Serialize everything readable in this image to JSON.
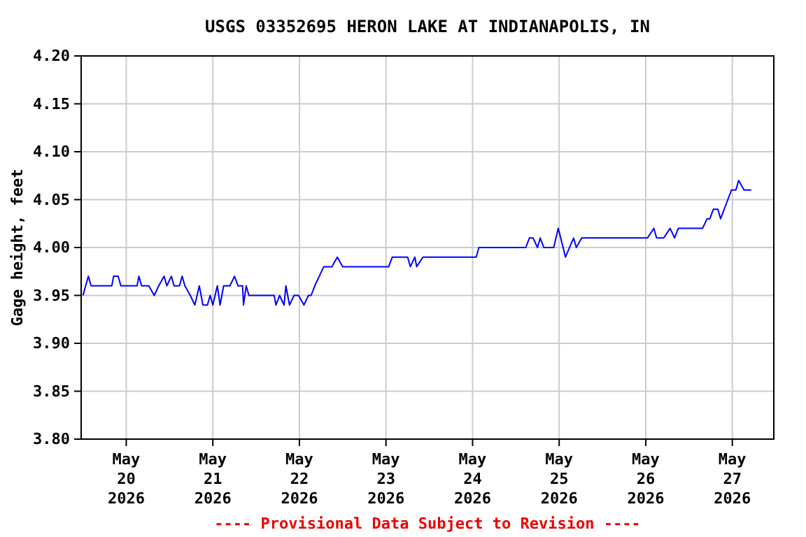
{
  "chart_data": {
    "type": "line",
    "title": "USGS 03352695 HERON LAKE AT INDIANAPOLIS, IN",
    "ylabel": "Gage height, feet",
    "x": [
      "2026-05-19T12:00",
      "2026-05-19T13:30",
      "2026-05-19T14:15",
      "2026-05-19T20:00",
      "2026-05-19T20:30",
      "2026-05-19T21:45",
      "2026-05-19T22:30",
      "2026-05-20T03:00",
      "2026-05-20T03:30",
      "2026-05-20T04:15",
      "2026-05-20T06:15",
      "2026-05-20T07:45",
      "2026-05-20T09:00",
      "2026-05-20T10:30",
      "2026-05-20T11:15",
      "2026-05-20T12:30",
      "2026-05-20T13:15",
      "2026-05-20T14:45",
      "2026-05-20T15:30",
      "2026-05-20T16:15",
      "2026-05-20T17:45",
      "2026-05-20T19:00",
      "2026-05-20T20:15",
      "2026-05-20T21:15",
      "2026-05-20T22:30",
      "2026-05-20T23:15",
      "2026-05-21T00:00",
      "2026-05-21T01:15",
      "2026-05-21T02:00",
      "2026-05-21T03:00",
      "2026-05-21T04:45",
      "2026-05-21T06:00",
      "2026-05-21T07:00",
      "2026-05-21T08:15",
      "2026-05-21T08:30",
      "2026-05-21T09:15",
      "2026-05-21T10:00",
      "2026-05-21T14:45",
      "2026-05-21T17:00",
      "2026-05-21T17:30",
      "2026-05-21T18:30",
      "2026-05-21T19:45",
      "2026-05-21T20:15",
      "2026-05-21T21:15",
      "2026-05-21T22:30",
      "2026-05-21T23:45",
      "2026-05-22T01:15",
      "2026-05-22T02:30",
      "2026-05-22T03:15",
      "2026-05-22T04:15",
      "2026-05-22T05:30",
      "2026-05-22T06:45",
      "2026-05-22T07:45",
      "2026-05-22T09:00",
      "2026-05-22T10:30",
      "2026-05-22T12:00",
      "2026-05-23T00:45",
      "2026-05-23T01:45",
      "2026-05-23T06:00",
      "2026-05-23T06:45",
      "2026-05-23T08:00",
      "2026-05-23T08:30",
      "2026-05-23T10:15",
      "2026-05-24T01:00",
      "2026-05-24T01:45",
      "2026-05-24T14:45",
      "2026-05-24T15:45",
      "2026-05-24T16:45",
      "2026-05-24T18:00",
      "2026-05-24T18:45",
      "2026-05-24T19:45",
      "2026-05-24T22:30",
      "2026-05-24T23:45",
      "2026-05-25T01:45",
      "2026-05-25T04:00",
      "2026-05-25T04:45",
      "2026-05-25T06:15",
      "2026-05-26T00:30",
      "2026-05-26T02:15",
      "2026-05-26T03:00",
      "2026-05-26T05:00",
      "2026-05-26T06:45",
      "2026-05-26T08:00",
      "2026-05-26T09:00",
      "2026-05-26T15:45",
      "2026-05-26T17:00",
      "2026-05-26T17:45",
      "2026-05-26T18:45",
      "2026-05-26T20:00",
      "2026-05-26T20:45",
      "2026-05-26T22:45",
      "2026-05-26T23:45",
      "2026-05-27T01:00",
      "2026-05-27T01:45",
      "2026-05-27T03:15",
      "2026-05-27T05:15"
    ],
    "series": [
      {
        "color": "#0000ff",
        "values": [
          3.95,
          3.97,
          3.96,
          3.96,
          3.97,
          3.97,
          3.96,
          3.96,
          3.97,
          3.96,
          3.96,
          3.95,
          3.96,
          3.97,
          3.96,
          3.97,
          3.96,
          3.96,
          3.97,
          3.96,
          3.95,
          3.94,
          3.96,
          3.94,
          3.94,
          3.95,
          3.94,
          3.96,
          3.94,
          3.96,
          3.96,
          3.97,
          3.96,
          3.96,
          3.94,
          3.96,
          3.95,
          3.95,
          3.95,
          3.94,
          3.95,
          3.94,
          3.96,
          3.94,
          3.95,
          3.95,
          3.94,
          3.95,
          3.95,
          3.96,
          3.97,
          3.98,
          3.98,
          3.98,
          3.99,
          3.98,
          3.98,
          3.99,
          3.99,
          3.98,
          3.99,
          3.98,
          3.99,
          3.99,
          4.0,
          4.0,
          4.01,
          4.01,
          4.0,
          4.01,
          4.0,
          4.0,
          4.02,
          3.99,
          4.01,
          4.0,
          4.01,
          4.01,
          4.02,
          4.01,
          4.01,
          4.02,
          4.01,
          4.02,
          4.02,
          4.03,
          4.03,
          4.04,
          4.04,
          4.03,
          4.05,
          4.06,
          4.06,
          4.07,
          4.06,
          4.06
        ]
      }
    ],
    "xlim": [
      "2026-05-19T11:30",
      "2026-05-27T11:30"
    ],
    "xticks": [
      {
        "value": "2026-05-20",
        "label": "May\n20\n2026"
      },
      {
        "value": "2026-05-21",
        "label": "May\n21\n2026"
      },
      {
        "value": "2026-05-22",
        "label": "May\n22\n2026"
      },
      {
        "value": "2026-05-23",
        "label": "May\n23\n2026"
      },
      {
        "value": "2026-05-24",
        "label": "May\n24\n2026"
      },
      {
        "value": "2026-05-25",
        "label": "May\n25\n2026"
      },
      {
        "value": "2026-05-26",
        "label": "May\n26\n2026"
      },
      {
        "value": "2026-05-27",
        "label": "May\n27\n2026"
      }
    ],
    "ylim": [
      3.8,
      4.2
    ],
    "yticks": [
      {
        "value": 3.8,
        "label": "3.80"
      },
      {
        "value": 3.85,
        "label": "3.85"
      },
      {
        "value": 3.9,
        "label": "3.90"
      },
      {
        "value": 3.95,
        "label": "3.95"
      },
      {
        "value": 4.0,
        "label": "4.00"
      },
      {
        "value": 4.05,
        "label": "4.05"
      },
      {
        "value": 4.1,
        "label": "4.10"
      },
      {
        "value": 4.15,
        "label": "4.15"
      },
      {
        "value": 4.2,
        "label": "4.20"
      }
    ],
    "grid": true,
    "line_style": "solid",
    "annotations": [
      "---- Provisional Data Subject to Revision ----"
    ]
  }
}
